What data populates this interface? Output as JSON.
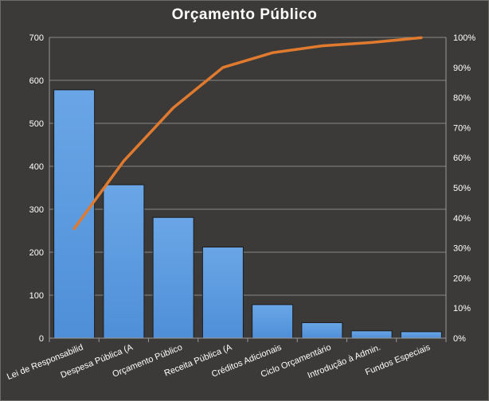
{
  "chart_data": {
    "type": "bar",
    "title": "Orçamento  Público",
    "categories": [
      "Lei de Responsabilid",
      "Despesa Pública (A",
      "Orçamento Público",
      "Receita Pública (A",
      "Créditos Adicionais",
      "Ciclo Orçamentário",
      "Introdução à Admin.",
      "Fundos Especiais"
    ],
    "series": [
      {
        "type": "bar",
        "axis": "left",
        "values": [
          578,
          357,
          281,
          212,
          78,
          36,
          17,
          15
        ]
      },
      {
        "type": "line",
        "axis": "right",
        "values": [
          36.4,
          58.9,
          76.6,
          90.0,
          94.9,
          97.2,
          98.3,
          99.9
        ]
      }
    ],
    "y_left": {
      "min": 0,
      "max": 700,
      "step": 100,
      "ticks": [
        "0",
        "100",
        "200",
        "300",
        "400",
        "500",
        "600",
        "700"
      ]
    },
    "y_right": {
      "min": 0,
      "max": 100,
      "step": 10,
      "ticks": [
        "0%",
        "10%",
        "20%",
        "30%",
        "40%",
        "50%",
        "60%",
        "70%",
        "80%",
        "90%",
        "100%"
      ]
    },
    "grid": true,
    "colors": {
      "bar": "#4f8fd8",
      "bar_top": "#6aa6e6",
      "line": "#e07a2e",
      "grid": "#8a8886",
      "background": "#3b3a38"
    }
  }
}
